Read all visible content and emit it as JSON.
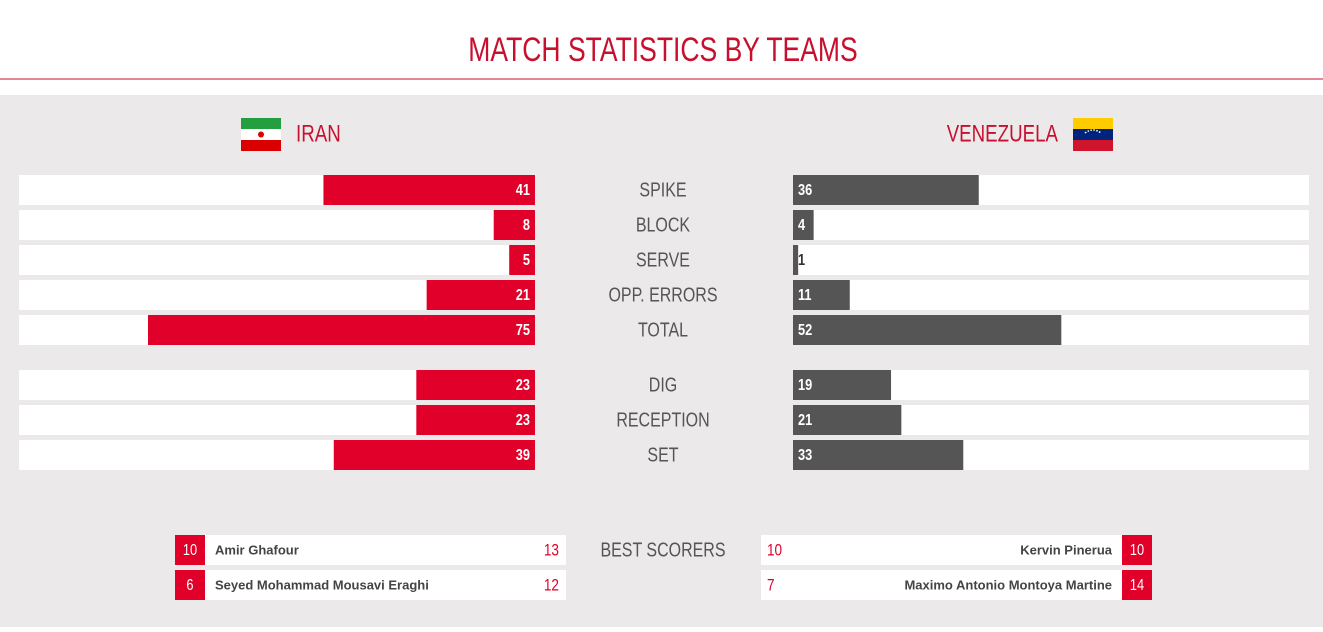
{
  "header": {
    "title": "MATCH STATISTICS BY TEAMS"
  },
  "teams": [
    {
      "name": "IRAN",
      "color": "#e0002a"
    },
    {
      "name": "VENEZUELA",
      "color": "#555555"
    }
  ],
  "xlim": [
    0,
    100
  ],
  "stat_groups": [
    [
      {
        "label": "SPIKE",
        "values": [
          41,
          36
        ]
      },
      {
        "label": "BLOCK",
        "values": [
          8,
          4
        ]
      },
      {
        "label": "SERVE",
        "values": [
          5,
          1
        ]
      },
      {
        "label": "OPP. ERRORS",
        "values": [
          21,
          11
        ]
      },
      {
        "label": "TOTAL",
        "values": [
          75,
          52
        ]
      }
    ],
    [
      {
        "label": "DIG",
        "values": [
          23,
          19
        ]
      },
      {
        "label": "RECEPTION",
        "values": [
          23,
          21
        ]
      },
      {
        "label": "SET",
        "values": [
          39,
          33
        ]
      }
    ]
  ],
  "best_scorers": {
    "label": "BEST SCORERS",
    "teams": [
      [
        {
          "number": 10,
          "name": "Amir Ghafour",
          "points": 13
        },
        {
          "number": 6,
          "name": "Seyed Mohammad Mousavi Eraghi",
          "points": 12
        }
      ],
      [
        {
          "number": 10,
          "name": "Kervin Pinerua",
          "points": 10
        },
        {
          "number": 14,
          "name": "Maximo Antonio Montoya Martine",
          "points": 7
        }
      ]
    ]
  }
}
